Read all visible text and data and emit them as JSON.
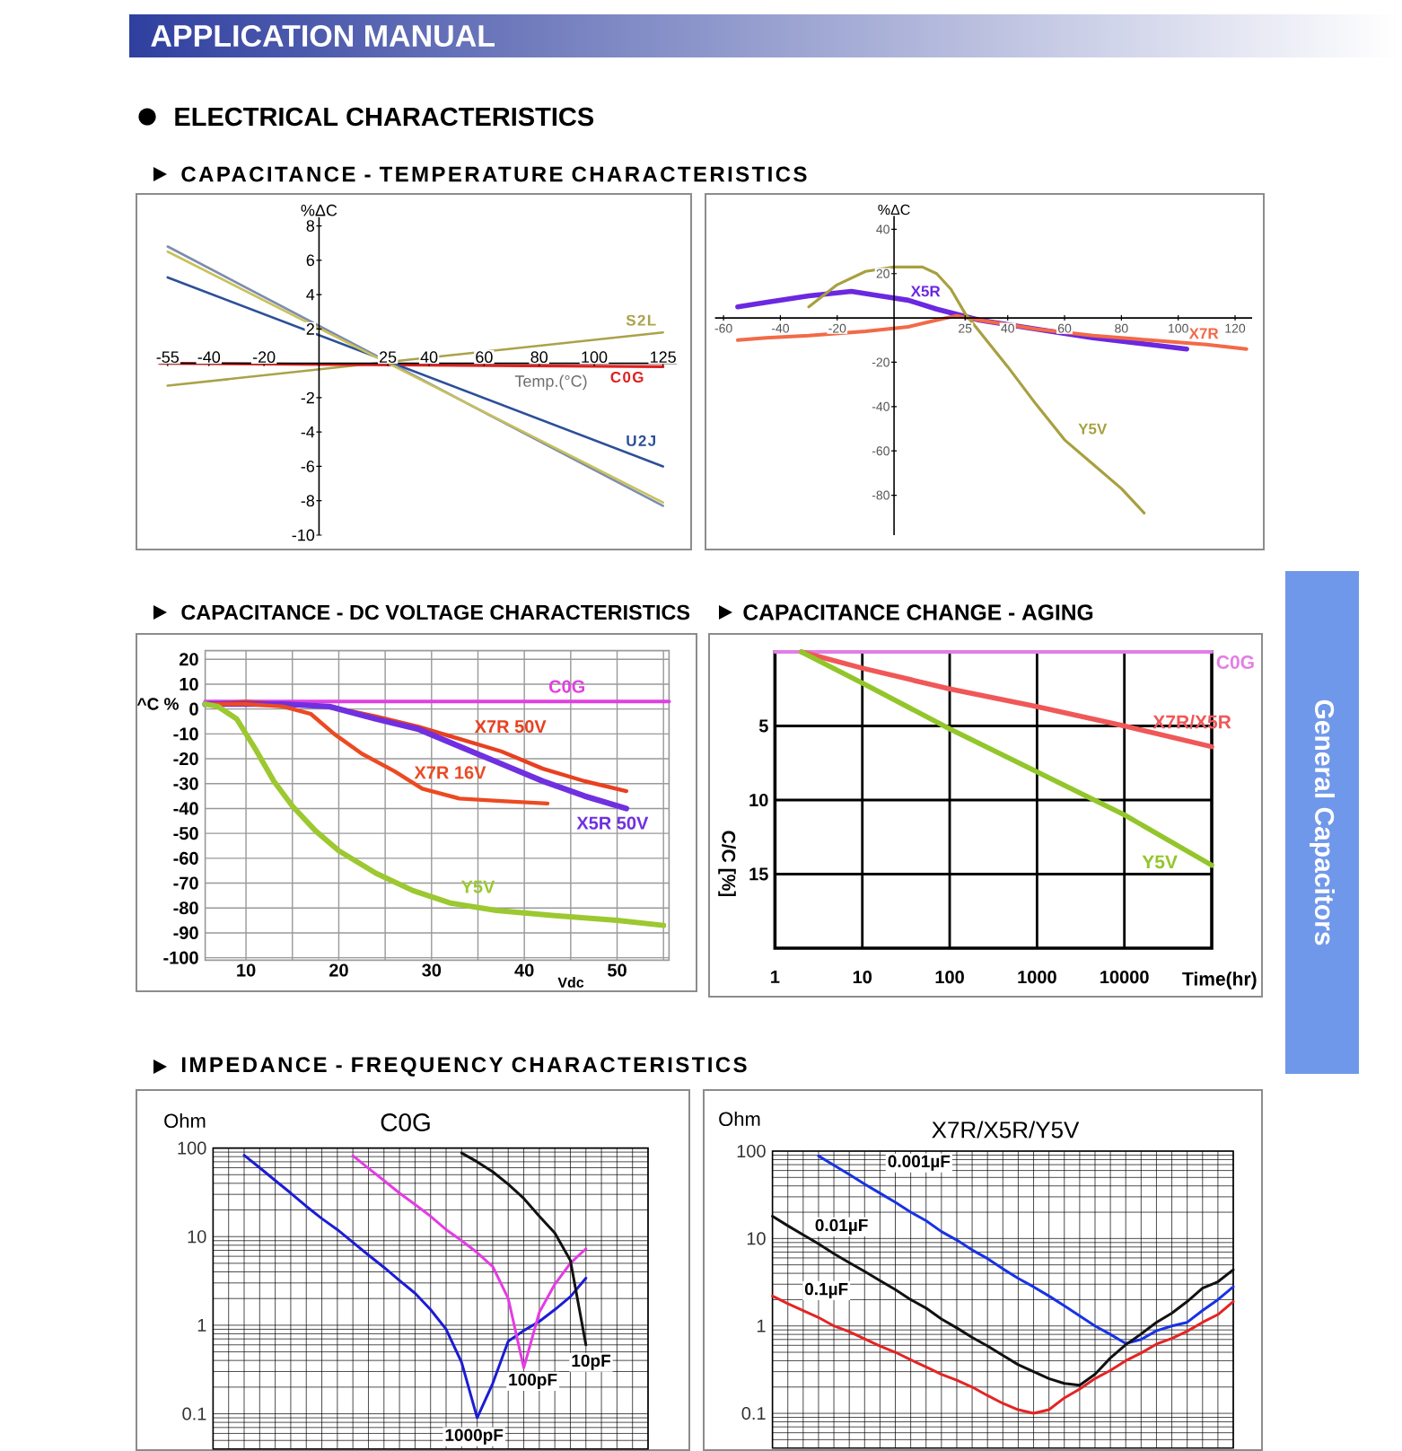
{
  "chart_data": [
    {
      "type": "other",
      "title": "APPLICATION MANUAL",
      "subtitle": "ELECTRICAL CHARACTERISTICS",
      "annotations": [
        "General Capacitors"
      ]
    },
    {
      "type": "line",
      "title": "CAPACITANCE - TEMPERATURE CHARACTERISTICS",
      "xlabel": "Temp.(°C)",
      "ylabel": "%ΔC",
      "xlim": [
        -58,
        130
      ],
      "ylim": [
        -10,
        8.5
      ],
      "xticks": [
        -55,
        -40,
        -20,
        25,
        40,
        60,
        80,
        100,
        125
      ],
      "yticks": [
        -10,
        -8,
        -6,
        -4,
        -2,
        2,
        4,
        6,
        8
      ],
      "series": [
        {
          "name": "S2L",
          "color": "#aaa24a",
          "x": [
            -55,
            125
          ],
          "values": [
            -1.3,
            1.8
          ]
        },
        {
          "name": "C0G",
          "color": "#e02020",
          "x": [
            -58,
            125
          ],
          "values": [
            0,
            -0.2
          ]
        },
        {
          "name": "U2J",
          "color": "#2c4f98",
          "x": [
            -55,
            125
          ],
          "values": [
            5,
            -6
          ]
        },
        {
          "color": "#7d8cae",
          "x": [
            -55,
            125
          ],
          "values": [
            6.8,
            -8.3
          ]
        },
        {
          "color": "#c9c15a",
          "x": [
            -55,
            125
          ],
          "values": [
            6.5,
            -8.1
          ]
        }
      ]
    },
    {
      "type": "line",
      "ylabel": "%ΔC",
      "xlim": [
        -63,
        126
      ],
      "ylim": [
        -98,
        46
      ],
      "xticks": [
        -60,
        -40,
        -20,
        25,
        40,
        60,
        80,
        100,
        120
      ],
      "yticks": [
        -80,
        -60,
        -40,
        -20,
        20,
        40
      ],
      "series": [
        {
          "name": "X5R",
          "color": "#6a28e0",
          "x": [
            -55,
            -45,
            -30,
            -15,
            -5,
            5,
            15,
            30,
            50,
            70,
            90,
            103
          ],
          "values": [
            5,
            7,
            10,
            12,
            10,
            8,
            4,
            -1,
            -5,
            -9,
            -12,
            -14
          ]
        },
        {
          "name": "X7R",
          "color": "#f26a48",
          "x": [
            -55,
            -45,
            -30,
            -10,
            5,
            15,
            22,
            30,
            50,
            70,
            90,
            110,
            124
          ],
          "values": [
            -10,
            -9,
            -8,
            -6,
            -4,
            -1,
            1,
            -1,
            -5,
            -8,
            -10,
            -12,
            -14
          ]
        },
        {
          "name": "Y5V",
          "color": "#a8a040",
          "x": [
            -30,
            -20,
            -10,
            0,
            10,
            15,
            20,
            25,
            30,
            40,
            50,
            60,
            70,
            80,
            88
          ],
          "values": [
            5,
            15,
            21,
            23,
            23,
            20,
            13,
            2,
            -6,
            -22,
            -39,
            -55,
            -66,
            -77,
            -88
          ]
        }
      ]
    },
    {
      "type": "line",
      "title": "CAPACITANCE - DC VOLTAGE CHARACTERISTICS",
      "xlabel": "Vdc",
      "ylabel": "^C %",
      "xlim": [
        5.6,
        55.6
      ],
      "ylim": [
        -101,
        23.5
      ],
      "xticks": [
        10,
        {
          "value": 15,
          "label": null
        },
        20,
        {
          "value": 25,
          "label": null
        },
        30,
        {
          "value": 35,
          "label": null
        },
        40,
        {
          "value": 45,
          "label": null
        },
        50,
        {
          "value": 55,
          "label": null
        }
      ],
      "yticks": [
        -100,
        -90,
        -80,
        -70,
        -60,
        -50,
        -40,
        -30,
        -20,
        -10,
        0,
        10,
        20
      ],
      "grid": true,
      "series": [
        {
          "name": "C0G",
          "color": "#e040e0",
          "x": [
            5.6,
            55.6
          ],
          "values": [
            3,
            3
          ]
        },
        {
          "name": "X7R 50V",
          "color": "#e84020",
          "x": [
            5.6,
            10,
            14,
            19,
            24,
            28.5,
            33,
            37.5,
            42,
            46.5,
            51
          ],
          "values": [
            2,
            3,
            2,
            1,
            -3,
            -7,
            -12,
            -17,
            -24,
            -29,
            -33
          ]
        },
        {
          "name": "X5R 50V",
          "color": "#7030e0",
          "x": [
            5.6,
            14,
            19,
            24,
            28.5,
            33,
            37.5,
            42,
            46.5,
            51
          ],
          "values": [
            2,
            2,
            1,
            -4,
            -8,
            -15,
            -22,
            -29,
            -35,
            -40
          ]
        },
        {
          "name": "X7R 16V",
          "color": "#ec4a22",
          "x": [
            5.6,
            10,
            14,
            17,
            19.5,
            22.5,
            26,
            29,
            33,
            37.5,
            42.5
          ],
          "values": [
            2,
            2,
            1,
            -2,
            -10,
            -18,
            -25,
            -32,
            -36,
            -37,
            -38
          ]
        },
        {
          "name": "Y5V",
          "color": "#9cc830",
          "x": [
            5.6,
            7,
            9,
            11,
            13,
            15,
            17.5,
            20,
            24,
            28,
            32,
            37,
            43,
            50,
            55
          ],
          "values": [
            2,
            1,
            -4,
            -16,
            -29,
            -39,
            -49,
            -57,
            -66,
            -73,
            -78,
            -81,
            -83,
            -85,
            -87
          ]
        }
      ]
    },
    {
      "type": "line",
      "title": "CAPACITANCE CHANGE - AGING",
      "xlabel": "Time(hr)",
      "ylabel": "C/C [%]",
      "log": "x",
      "xlim": [
        1,
        100000
      ],
      "ylim": [
        20,
        0
      ],
      "xticks": [
        1,
        10,
        100,
        1000,
        10000
      ],
      "yticks": [
        5,
        10,
        15
      ],
      "grid": true,
      "series": [
        {
          "name": "C0G",
          "color": "#e27ee6",
          "x": [
            1,
            100000
          ],
          "values": [
            0,
            0
          ]
        },
        {
          "name": "X7R/X5R",
          "color": "#f05858",
          "x": [
            2,
            10,
            100,
            1000,
            10000,
            100000
          ],
          "values": [
            0,
            1.1,
            2.5,
            3.7,
            5,
            6.4
          ]
        },
        {
          "name": "Y5V",
          "color": "#92c62a",
          "x": [
            2,
            10,
            100,
            1000,
            10000,
            100000
          ],
          "values": [
            0,
            2.1,
            5.2,
            8.1,
            11,
            14.4
          ]
        }
      ]
    },
    {
      "type": "line",
      "title": "IMPEDANCE - FREQUENCY CHARACTERISTICS",
      "subtitle": "C0G",
      "ylabel": "Ohm",
      "categories": [
        null,
        null,
        null,
        null,
        null,
        null,
        null,
        null,
        null,
        null,
        null,
        null,
        null,
        null,
        null,
        null,
        null,
        null,
        null,
        null,
        null,
        null,
        null,
        null,
        null,
        null,
        null,
        null,
        null
      ],
      "log": "y",
      "ylim": [
        0.04,
        100
      ],
      "yticks": [
        {
          "value": 0.05,
          "label": null
        },
        {
          "value": 0.06,
          "label": null
        },
        {
          "value": 0.07,
          "label": null
        },
        {
          "value": 0.08,
          "label": null
        },
        {
          "value": 0.09,
          "label": null
        },
        0.1,
        {
          "value": 0.2,
          "label": null
        },
        {
          "value": 0.3,
          "label": null
        },
        {
          "value": 0.4,
          "label": null
        },
        {
          "value": 0.5,
          "label": null
        },
        {
          "value": 0.6,
          "label": null
        },
        {
          "value": 0.7,
          "label": null
        },
        {
          "value": 0.8,
          "label": null
        },
        {
          "value": 0.9,
          "label": null
        },
        1,
        {
          "value": 2,
          "label": null
        },
        {
          "value": 3,
          "label": null
        },
        {
          "value": 4,
          "label": null
        },
        {
          "value": 5,
          "label": null
        },
        {
          "value": 6,
          "label": null
        },
        {
          "value": 7,
          "label": null
        },
        {
          "value": 8,
          "label": null
        },
        {
          "value": 9,
          "label": null
        },
        10,
        {
          "value": 20,
          "label": null
        },
        {
          "value": 30,
          "label": null
        },
        {
          "value": 40,
          "label": null
        },
        {
          "value": 50,
          "label": null
        },
        {
          "value": 60,
          "label": null
        },
        {
          "value": 70,
          "label": null
        },
        {
          "value": 80,
          "label": null
        },
        {
          "value": 90,
          "label": null
        },
        100
      ],
      "grid": true,
      "series": [
        {
          "name": "1000pF",
          "color": "#1c1cd6",
          "values": [
            null,
            null,
            83,
            60,
            43,
            31,
            22,
            16,
            12,
            8.6,
            6.2,
            4.5,
            3.2,
            2.3,
            1.5,
            0.9,
            0.38,
            0.09,
            0.22,
            0.66,
            0.87,
            1.1,
            1.5,
            2.1,
            3.4,
            null,
            null,
            null,
            null
          ]
        },
        {
          "name": "100pF",
          "color": "#e43ce4",
          "values": [
            null,
            null,
            null,
            null,
            null,
            null,
            null,
            null,
            null,
            82,
            59,
            43,
            31,
            23,
            17,
            12,
            9,
            6.6,
            4.6,
            2.0,
            0.33,
            1.4,
            2.9,
            5.0,
            7.3,
            null,
            null,
            null,
            null
          ]
        },
        {
          "name": "10pF",
          "color": "#111111",
          "values": [
            null,
            null,
            null,
            null,
            null,
            null,
            null,
            null,
            null,
            null,
            null,
            null,
            null,
            null,
            null,
            null,
            88,
            70,
            54,
            39,
            27,
            17,
            11,
            5.4,
            0.6,
            null,
            null,
            null,
            null
          ]
        }
      ]
    },
    {
      "type": "line",
      "title": "X7R/X5R/Y5V",
      "ylabel": "Ohm",
      "categories": [
        null,
        null,
        null,
        null,
        null,
        null,
        null,
        null,
        null,
        null,
        null,
        null,
        null,
        null,
        null,
        null,
        null,
        null,
        null,
        null,
        null,
        null,
        null,
        null,
        null,
        null,
        null,
        null,
        null,
        null,
        null
      ],
      "log": "y",
      "ylim": [
        0.04,
        100
      ],
      "yticks": [
        {
          "value": 0.05,
          "label": null
        },
        {
          "value": 0.06,
          "label": null
        },
        {
          "value": 0.07,
          "label": null
        },
        {
          "value": 0.08,
          "label": null
        },
        {
          "value": 0.09,
          "label": null
        },
        0.1,
        {
          "value": 0.2,
          "label": null
        },
        {
          "value": 0.3,
          "label": null
        },
        {
          "value": 0.4,
          "label": null
        },
        {
          "value": 0.5,
          "label": null
        },
        {
          "value": 0.6,
          "label": null
        },
        {
          "value": 0.7,
          "label": null
        },
        {
          "value": 0.8,
          "label": null
        },
        {
          "value": 0.9,
          "label": null
        },
        1,
        {
          "value": 2,
          "label": null
        },
        {
          "value": 3,
          "label": null
        },
        {
          "value": 4,
          "label": null
        },
        {
          "value": 5,
          "label": null
        },
        {
          "value": 6,
          "label": null
        },
        {
          "value": 7,
          "label": null
        },
        {
          "value": 8,
          "label": null
        },
        {
          "value": 9,
          "label": null
        },
        10,
        {
          "value": 20,
          "label": null
        },
        {
          "value": 30,
          "label": null
        },
        {
          "value": 40,
          "label": null
        },
        {
          "value": 50,
          "label": null
        },
        {
          "value": 60,
          "label": null
        },
        {
          "value": 70,
          "label": null
        },
        {
          "value": 80,
          "label": null
        },
        {
          "value": 90,
          "label": null
        },
        100
      ],
      "grid": true,
      "series": [
        {
          "name": "0.001µF",
          "color": "#1832e6",
          "values": [
            null,
            null,
            null,
            88,
            69,
            54,
            42,
            33,
            26,
            20,
            16,
            12,
            9.6,
            7.4,
            5.9,
            4.5,
            3.5,
            2.8,
            2.2,
            1.7,
            1.3,
            1.0,
            0.8,
            0.63,
            0.7,
            0.88,
            1.0,
            1.1,
            1.5,
            2.0,
            2.8
          ]
        },
        {
          "name": "0.01µF",
          "color": "#111111",
          "values": [
            18,
            14,
            11,
            8.7,
            6.7,
            5.3,
            4.2,
            3.3,
            2.6,
            2.0,
            1.6,
            1.2,
            0.95,
            0.74,
            0.59,
            0.46,
            0.36,
            0.3,
            0.25,
            0.22,
            0.21,
            0.28,
            0.43,
            0.61,
            0.81,
            1.1,
            1.4,
            1.9,
            2.7,
            3.2,
            4.4
          ]
        },
        {
          "name": "0.1µF",
          "color": "#e42424",
          "values": [
            2.2,
            1.8,
            1.5,
            1.25,
            1.0,
            0.86,
            0.71,
            0.59,
            0.5,
            0.41,
            0.34,
            0.28,
            0.24,
            0.2,
            0.16,
            0.13,
            0.11,
            0.1,
            0.11,
            0.15,
            0.19,
            0.25,
            0.31,
            0.4,
            0.49,
            0.62,
            0.72,
            0.87,
            1.1,
            1.35,
            1.9
          ]
        }
      ]
    }
  ]
}
